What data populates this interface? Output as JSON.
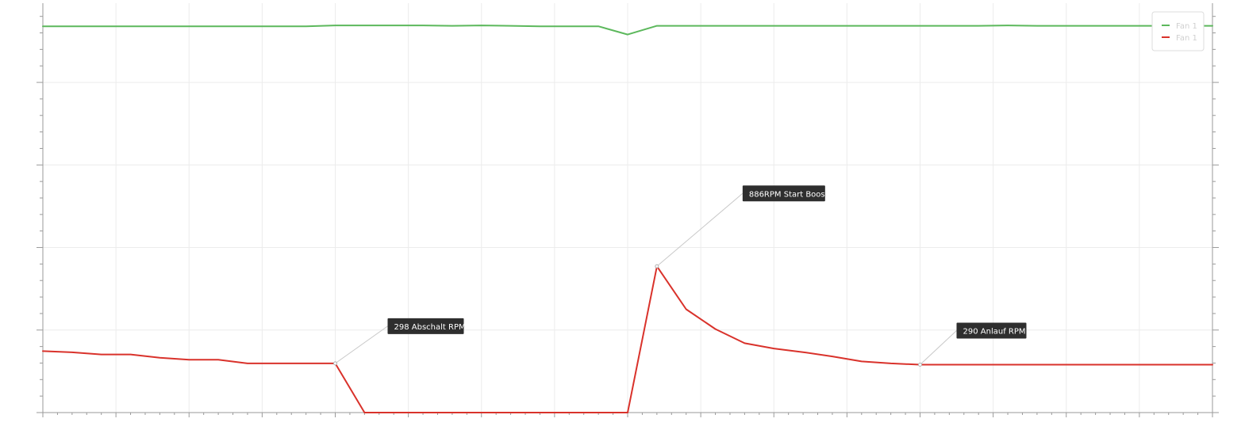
{
  "chart_data": {
    "type": "line",
    "title": "",
    "xlabel": "",
    "ylabel": "",
    "x": [
      0,
      1,
      2,
      3,
      4,
      5,
      6,
      7,
      8,
      9,
      10,
      11,
      12,
      13,
      14,
      15,
      16,
      17,
      18,
      19,
      20,
      21,
      22,
      23,
      24,
      25,
      26,
      27,
      28,
      29,
      30,
      31,
      32,
      33,
      34,
      35,
      36,
      37,
      38,
      39,
      40
    ],
    "xlim": [
      0,
      40
    ],
    "ylim": [
      0,
      2480
    ],
    "grid": true,
    "legend_position": "top-right",
    "series": [
      {
        "name": "Fan 1",
        "color": "#5cb85c",
        "values": [
          2340,
          2340,
          2340,
          2340,
          2340,
          2340,
          2340,
          2340,
          2340,
          2340,
          2345,
          2345,
          2345,
          2345,
          2343,
          2345,
          2343,
          2340,
          2340,
          2340,
          2290,
          2343,
          2343,
          2343,
          2343,
          2343,
          2343,
          2343,
          2343,
          2343,
          2343,
          2343,
          2343,
          2345,
          2343,
          2343,
          2343,
          2343,
          2343,
          2343,
          2343
        ]
      },
      {
        "name": "Fan 1",
        "color": "#d9322b",
        "values": [
          372,
          365,
          352,
          352,
          332,
          320,
          320,
          298,
          298,
          298,
          298,
          0,
          0,
          0,
          0,
          0,
          0,
          0,
          0,
          0,
          0,
          886,
          626,
          506,
          420,
          388,
          366,
          340,
          310,
          298,
          290,
          290,
          290,
          290,
          290,
          290,
          290,
          290,
          290,
          290,
          290
        ]
      }
    ],
    "annotations": [
      {
        "series_index": 1,
        "x": 10,
        "y": 298,
        "text": "298 Abschalt RPM"
      },
      {
        "series_index": 1,
        "x": 21,
        "y": 886,
        "text": "886RPM Start Boost"
      },
      {
        "series_index": 1,
        "x": 30,
        "y": 290,
        "text": "290 Anlauf RPM"
      }
    ]
  }
}
